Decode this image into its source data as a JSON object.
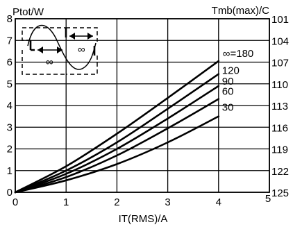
{
  "chart_data": {
    "type": "line",
    "title": "",
    "xlabel": "IT(RMS)/A",
    "ylabel_left": "Ptot/W",
    "ylabel_right": "Tmb(max)/C",
    "xlim": [
      0,
      5
    ],
    "ylim": [
      0,
      8
    ],
    "x_ticks": [
      0,
      1,
      2,
      3,
      4,
      5
    ],
    "y_ticks": [
      0,
      1,
      2,
      3,
      4,
      5,
      6,
      7,
      8
    ],
    "right_ticks": [
      "125",
      "122",
      "119",
      "116",
      "113",
      "110",
      "107",
      "104",
      "101"
    ],
    "grid": true,
    "series": [
      {
        "name": "30",
        "x": [
          0,
          1,
          2,
          3,
          4
        ],
        "y": [
          0,
          0.55,
          1.3,
          2.3,
          3.5
        ]
      },
      {
        "name": "60",
        "x": [
          0,
          1,
          2,
          3,
          4
        ],
        "y": [
          0,
          0.7,
          1.7,
          2.95,
          4.3
        ]
      },
      {
        "name": "90",
        "x": [
          0,
          1,
          2,
          3,
          4
        ],
        "y": [
          0,
          0.85,
          2.0,
          3.4,
          4.9
        ]
      },
      {
        "name": "120",
        "x": [
          0,
          1,
          2,
          3,
          4
        ],
        "y": [
          0,
          1.0,
          2.3,
          3.85,
          5.45
        ]
      },
      {
        "name": "∞=180",
        "x": [
          0,
          1,
          2,
          3,
          4
        ],
        "y": [
          0,
          1.2,
          2.7,
          4.35,
          6.05
        ]
      }
    ],
    "inset": {
      "angle_label_left": "∞",
      "angle_label_right": "∞"
    }
  }
}
